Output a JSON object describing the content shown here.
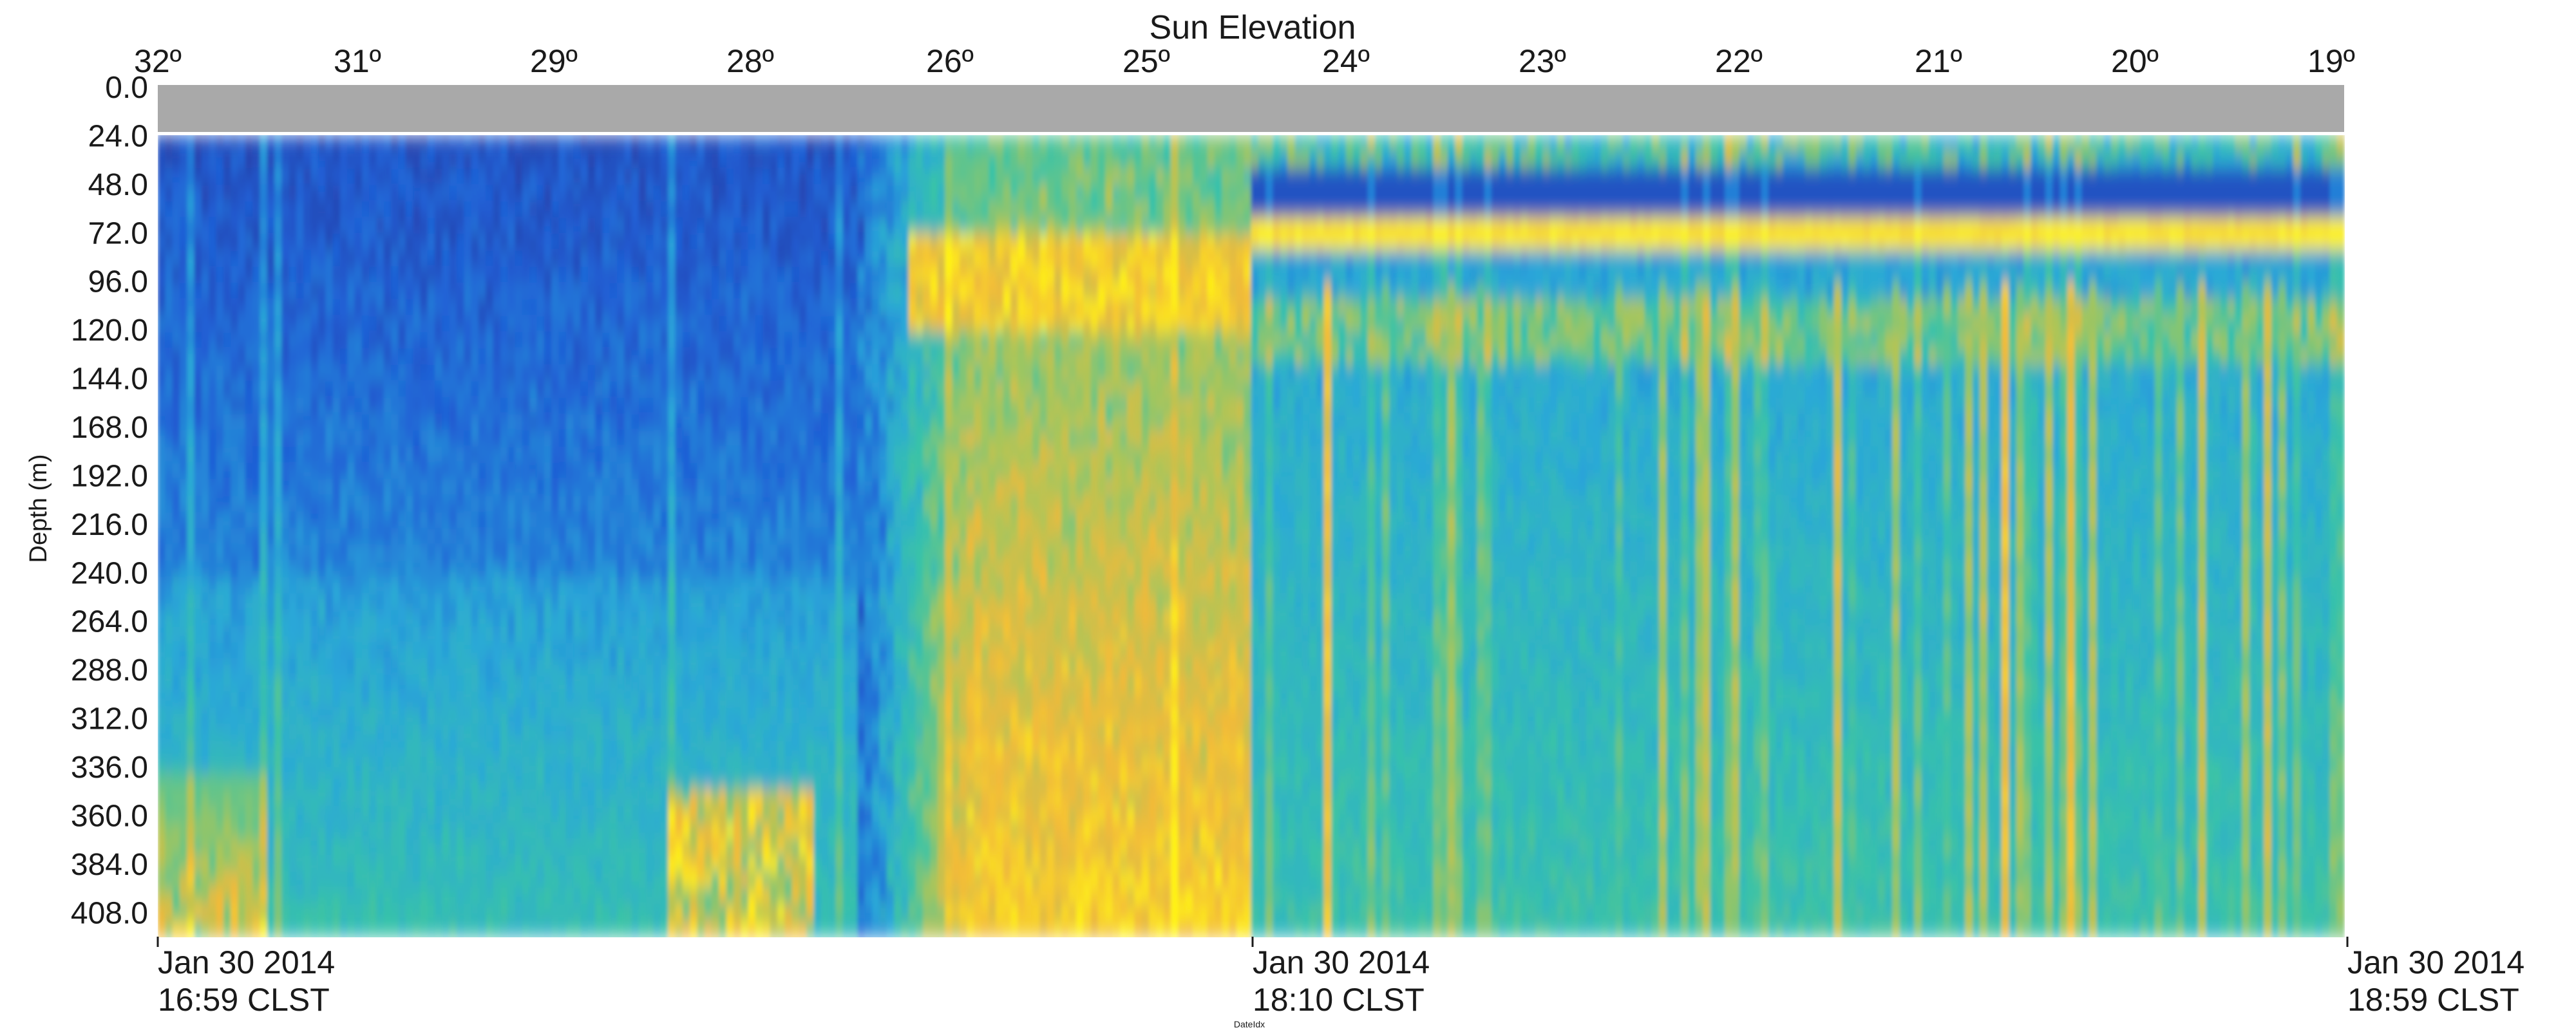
{
  "chart_data": {
    "type": "heatmap",
    "title": "Sun Elevation",
    "top_axis": {
      "label": "Sun Elevation",
      "ticks": [
        "32º",
        "31º",
        "29º",
        "28º",
        "26º",
        "25º",
        "24º",
        "23º",
        "22º",
        "21º",
        "20º",
        "19º"
      ],
      "range": [
        32,
        19
      ]
    },
    "ylabel": "Depth (m)",
    "y_ticks": [
      "0.0",
      "24.0",
      "48.0",
      "72.0",
      "96.0",
      "120.0",
      "144.0",
      "168.0",
      "192.0",
      "216.0",
      "240.0",
      "264.0",
      "288.0",
      "312.0",
      "336.0",
      "360.0",
      "384.0",
      "408.0"
    ],
    "ylim": [
      0,
      420
    ],
    "xlabel": "DateIdx",
    "x_ticks": [
      {
        "date": "Jan 30 2014",
        "time": "16:59 CLST"
      },
      {
        "date": "Jan 30 2014",
        "time": "18:10 CLST"
      },
      {
        "date": "Jan 30 2014",
        "time": "18:59 CLST"
      }
    ],
    "colormap": [
      "#2c2f8e",
      "#1f5fd6",
      "#2aa7d9",
      "#38c3a8",
      "#a8c65a",
      "#f2b93a",
      "#fff215"
    ],
    "no_data_color": "#a9a9a9",
    "scattering_layers_depth_m": {
      "surface_no_data": [
        0,
        24
      ],
      "shallow_layer": [
        48,
        80
      ],
      "secondary_layer": [
        100,
        130
      ]
    },
    "grid": false,
    "legend": "none"
  }
}
